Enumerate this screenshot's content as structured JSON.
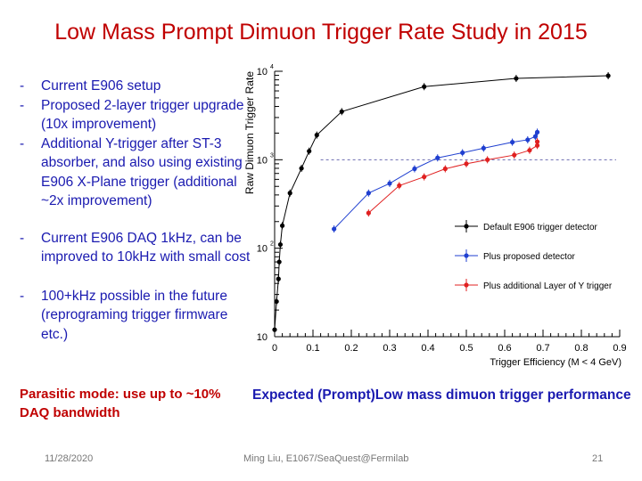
{
  "slide": {
    "title": "Low Mass Prompt Dimuon Trigger Rate Study in 2015",
    "bullets": [
      {
        "dash": "-",
        "text": "Current E906 setup"
      },
      {
        "dash": "-",
        "text": "Proposed 2-layer trigger upgrade (10x improvement)"
      },
      {
        "dash": "-",
        "text": "Additional Y-trigger after ST-3 absorber, and also using existing E906 X-Plane trigger (additional ~2x improvement)"
      },
      {
        "dash": "-",
        "text": "Current E906 DAQ 1kHz, can be improved to 10kHz with small cost"
      },
      {
        "dash": "-",
        "text": "100+kHz possible in the future (reprograming trigger firmware etc.)"
      }
    ],
    "parasitic_note": "Parasitic mode: use up to ~10% DAQ bandwidth",
    "chart_caption": "Expected (Prompt)Low mass dimuon trigger performance",
    "footer": {
      "date": "11/28/2020",
      "author": "Ming Liu, E1067/SeaQuest@Fermilab",
      "page": "21"
    }
  },
  "chart_data": {
    "type": "line",
    "title": "",
    "xlabel": "Trigger Efficiency (M < 4 GeV)",
    "ylabel": "Raw Dimuon Trigger Rate",
    "xscale": "linear",
    "yscale": "log",
    "xlim": [
      0,
      0.9
    ],
    "ylim": [
      10,
      10000
    ],
    "xticks": [
      "0",
      "0.1",
      "0.2",
      "0.3",
      "0.4",
      "0.5",
      "0.6",
      "0.7",
      "0.8",
      "0.9"
    ],
    "yticks": [
      {
        "base": "10",
        "exp": ""
      },
      {
        "base": "10",
        "exp": "2"
      },
      {
        "base": "10",
        "exp": "3"
      },
      {
        "base": "10",
        "exp": "4"
      }
    ],
    "reference_line": {
      "y": 1000,
      "style": "dashed",
      "color": "#6b6bb0"
    },
    "legend_position": "right",
    "series": [
      {
        "name": "Default E906 trigger detector",
        "color": "#000000",
        "x": [
          0.0,
          0.005,
          0.01,
          0.012,
          0.015,
          0.02,
          0.04,
          0.07,
          0.09,
          0.11,
          0.175,
          0.39,
          0.63,
          0.87
        ],
        "y": [
          12,
          25,
          45,
          70,
          110,
          180,
          420,
          800,
          1250,
          1900,
          3500,
          6700,
          8300,
          8900
        ]
      },
      {
        "name": "Plus proposed detector",
        "color": "#1f3fd0",
        "x": [
          0.155,
          0.245,
          0.3,
          0.365,
          0.425,
          0.49,
          0.545,
          0.62,
          0.66,
          0.68,
          0.685
        ],
        "y": [
          165,
          420,
          540,
          790,
          1050,
          1200,
          1350,
          1580,
          1680,
          1830,
          2050
        ]
      },
      {
        "name": "Plus additional Layer of Y trigger",
        "color": "#e02020",
        "x": [
          0.245,
          0.325,
          0.39,
          0.445,
          0.5,
          0.555,
          0.625,
          0.665,
          0.685,
          0.685
        ],
        "y": [
          250,
          510,
          640,
          790,
          900,
          1000,
          1130,
          1280,
          1450,
          1600
        ]
      }
    ]
  }
}
